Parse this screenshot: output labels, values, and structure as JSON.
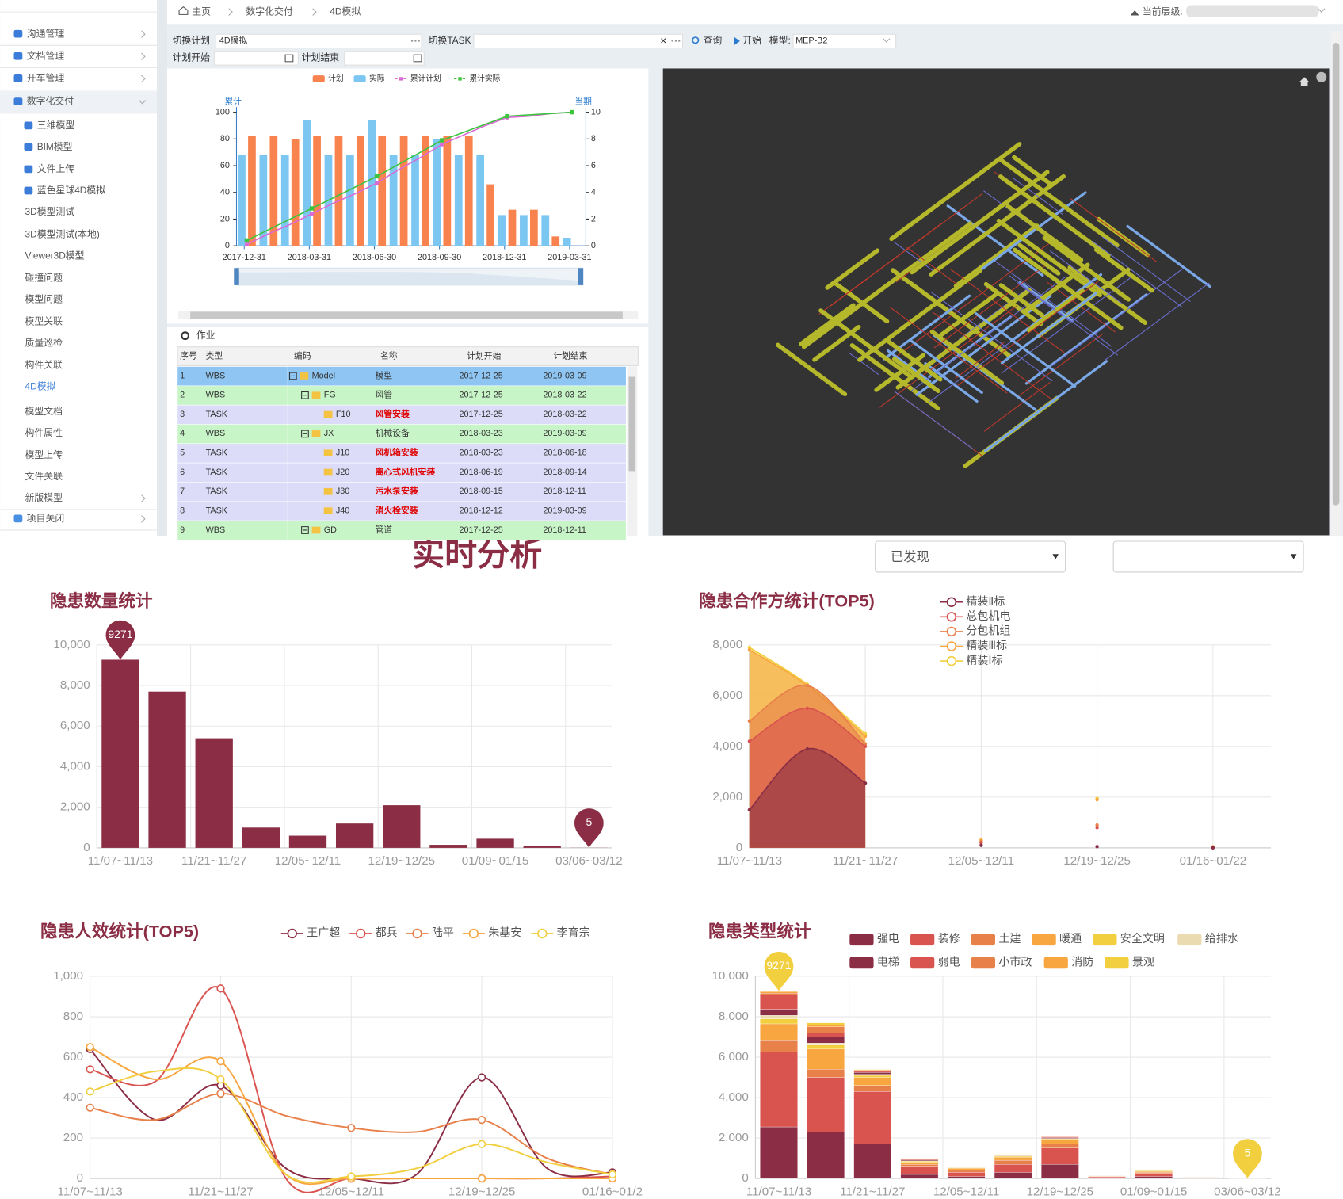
{
  "sidebar": {
    "items": [
      "沟通管理",
      "文档管理",
      "开车管理",
      "数字化交付",
      "三维模型",
      "BIM模型",
      "文件上传",
      "蓝色星球4D模拟",
      "3D模型测试",
      "3D模型测试(本地)",
      "Viewer3D模型",
      "碰撞问题",
      "模型问题",
      "模型关联",
      "质量巡检",
      "构件关联",
      "4D模拟",
      "模型文档",
      "构件属性",
      "模型上传",
      "文件关联",
      "新版模型",
      "项目关闭"
    ]
  },
  "breadcrumb": [
    "主页",
    "数字化交付",
    "4D模拟"
  ],
  "level_label": "当前层级:",
  "toolbar": {
    "plan_label": "切换计划",
    "plan_value": "4D模拟",
    "task_label": "切换TASK",
    "query": "查询",
    "start": "开始",
    "model_label": "模型:",
    "model_value": "MEP-B2",
    "plan_start_label": "计划开始",
    "plan_end_label": "计划结束"
  },
  "table": {
    "title": "作业",
    "headers": [
      "序号",
      "类型",
      "编码",
      "名称",
      "计划开始",
      "计划结束"
    ],
    "rows": [
      [
        "1",
        "WBS",
        "Model",
        "模型",
        "2017-12-25",
        "2019-03-09"
      ],
      [
        "2",
        "WBS",
        "FG",
        "风管",
        "2017-12-25",
        "2018-03-22"
      ],
      [
        "3",
        "TASK",
        "F10",
        "风管安装",
        "2017-12-25",
        "2018-03-22"
      ],
      [
        "4",
        "WBS",
        "JX",
        "机械设备",
        "2018-03-23",
        "2019-03-09"
      ],
      [
        "5",
        "TASK",
        "J10",
        "风机箱安装",
        "2018-03-23",
        "2018-06-18"
      ],
      [
        "6",
        "TASK",
        "J20",
        "离心式风机安装",
        "2018-06-19",
        "2018-09-14"
      ],
      [
        "7",
        "TASK",
        "J30",
        "污水泵安装",
        "2018-09-15",
        "2018-12-11"
      ],
      [
        "8",
        "TASK",
        "J40",
        "消火栓安装",
        "2018-12-12",
        "2019-03-09"
      ],
      [
        "9",
        "WBS",
        "GD",
        "管道",
        "2017-12-25",
        "2018-12-11"
      ]
    ]
  },
  "analysis": {
    "title": "实时分析",
    "filter": "已发现"
  },
  "chart_data": [
    {
      "type": "combo",
      "y_label": "累计",
      "y2_label": "当期",
      "categories": [
        "2017-12-31",
        null,
        null,
        "2018-03-31",
        null,
        null,
        "2018-06-30",
        null,
        null,
        "2018-09-30",
        null,
        null,
        "2018-12-31",
        null,
        null,
        "2019-03-31"
      ],
      "series": [
        {
          "name": "计划",
          "kind": "bar",
          "color": "#f8834f",
          "values": [
            82,
            82,
            80,
            82,
            82,
            82,
            82,
            82,
            82,
            82,
            82,
            46,
            27,
            27,
            7,
            0
          ]
        },
        {
          "name": "实际",
          "kind": "bar",
          "color": "#7cc6f2",
          "values": [
            68,
            68,
            68,
            94,
            68,
            68,
            94,
            68,
            68,
            80,
            68,
            68,
            23,
            23,
            23,
            6
          ]
        },
        {
          "name": "累计计划",
          "kind": "line",
          "axis": "y2",
          "color": "#d96ad6",
          "values": [
            0.1,
            0.9,
            1.6,
            2.4,
            3.2,
            3.9,
            4.7,
            5.7,
            6.6,
            7.6,
            8.3,
            9.0,
            9.6,
            9.7,
            9.9,
            10
          ]
        },
        {
          "name": "累计实际",
          "kind": "line",
          "axis": "y2",
          "color": "#3cc43c",
          "values": [
            0.4,
            1.2,
            2.0,
            2.8,
            3.6,
            4.4,
            5.2,
            6.1,
            7.0,
            7.9,
            8.5,
            9.1,
            9.7,
            9.8,
            9.9,
            10
          ]
        }
      ],
      "ylim": [
        0,
        100
      ],
      "yticks": [
        0,
        20,
        40,
        60,
        80,
        100
      ],
      "y2lim": [
        0,
        10
      ],
      "y2ticks": [
        0,
        2,
        4,
        6,
        8,
        10
      ]
    },
    {
      "type": "bar",
      "title": "隐患数量统计",
      "color": "#8b2e45",
      "categories": [
        "11/07~11/13",
        null,
        "11/21~11/27",
        null,
        "12/05~12/11",
        null,
        "12/19~12/25",
        null,
        "01/09~01/15",
        null,
        "03/06~03/12"
      ],
      "values": [
        9271,
        7700,
        5400,
        1000,
        600,
        1200,
        2100,
        150,
        450,
        80,
        5
      ],
      "ylim": [
        0,
        10000
      ],
      "yticks": [
        0,
        {
          "value": 2000,
          "label": "2,000"
        },
        {
          "value": 4000,
          "label": "4,000"
        },
        {
          "value": 6000,
          "label": "6,000"
        },
        {
          "value": 8000,
          "label": "8,000"
        },
        {
          "value": 10000,
          "label": "10,000"
        }
      ],
      "grid": true
    },
    {
      "type": "area",
      "title": "隐患合作方统计(TOP5)",
      "categories": [
        "11/07~11/13",
        null,
        "11/21~11/27",
        null,
        "12/05~12/11",
        null,
        "12/19~12/25",
        null,
        "01/16~01/22",
        null
      ],
      "series": [
        {
          "name": "精装Ⅱ标",
          "color": "#8b2e45",
          "values": [
            1500,
            3900,
            2550,
            null,
            100,
            null,
            50,
            null,
            0,
            null
          ]
        },
        {
          "name": "总包机电",
          "color": "#d9534f",
          "values": [
            4200,
            5500,
            4000,
            null,
            200,
            null,
            800,
            null,
            20,
            null
          ]
        },
        {
          "name": "分包机组",
          "color": "#e8804a",
          "values": [
            5000,
            6400,
            4100,
            null,
            250,
            null,
            900,
            null,
            30,
            null
          ]
        },
        {
          "name": "精装Ⅲ标",
          "color": "#f7a640",
          "values": [
            7800,
            6400,
            4400,
            null,
            300,
            null,
            1900,
            null,
            40,
            null
          ]
        },
        {
          "name": "精装Ⅰ标",
          "color": "#f1cf3f",
          "values": [
            7900,
            6450,
            4500,
            null,
            320,
            null,
            1950,
            null,
            45,
            null
          ]
        }
      ],
      "ylim": [
        0,
        8000
      ],
      "yticks": [
        0,
        {
          "value": 2000,
          "label": "2,000"
        },
        {
          "value": 4000,
          "label": "4,000"
        },
        {
          "value": 6000,
          "label": "6,000"
        },
        {
          "value": 8000,
          "label": "8,000"
        }
      ],
      "grid": true
    },
    {
      "type": "line",
      "title": "隐患人效统计(TOP5)",
      "smooth": true,
      "categories": [
        "11/07~11/13",
        null,
        "11/21~11/27",
        null,
        "12/05~12/11",
        null,
        "12/19~12/25",
        null,
        "01/16~01/2"
      ],
      "series": [
        {
          "name": "王广超",
          "color": "#8b2e45",
          "values": [
            640,
            290,
            460,
            50,
            0,
            20,
            500,
            50,
            30
          ]
        },
        {
          "name": "都兵",
          "color": "#d9534f",
          "values": [
            540,
            480,
            940,
            0,
            0,
            0,
            0,
            0,
            10
          ]
        },
        {
          "name": "陆平",
          "color": "#e8804a",
          "values": [
            350,
            290,
            420,
            310,
            250,
            230,
            290,
            100,
            20
          ]
        },
        {
          "name": "朱基安",
          "color": "#f7a640",
          "values": [
            650,
            490,
            580,
            20,
            0,
            0,
            0,
            0,
            0
          ]
        },
        {
          "name": "李育宗",
          "color": "#f1cf3f",
          "values": [
            430,
            530,
            490,
            20,
            10,
            50,
            170,
            80,
            20
          ]
        }
      ],
      "ylim": [
        0,
        1000
      ],
      "yticks": [
        0,
        200,
        400,
        600,
        800,
        {
          "value": 1000,
          "label": "1,000"
        }
      ],
      "grid": true
    },
    {
      "type": "stacked_bar",
      "title": "隐患类型统计",
      "annotations": [
        "9271",
        "5"
      ],
      "categories": [
        "11/07~11/13",
        null,
        "11/21~11/27",
        null,
        "12/05~12/11",
        null,
        "12/19~12/25",
        null,
        "01/09~01/15",
        null,
        "03/06~03/12"
      ],
      "series": [
        {
          "name": "强电",
          "color": "#8b2e45",
          "values": [
            2550,
            2300,
            1700,
            200,
            100,
            300,
            700,
            30,
            100,
            20,
            1
          ]
        },
        {
          "name": "装修",
          "color": "#d9534f",
          "values": [
            3700,
            2700,
            2600,
            400,
            200,
            400,
            800,
            50,
            150,
            30,
            2
          ]
        },
        {
          "name": "土建",
          "color": "#e8804a",
          "values": [
            600,
            400,
            300,
            100,
            100,
            200,
            200,
            20,
            50,
            10,
            1
          ]
        },
        {
          "name": "暖通",
          "color": "#f7a640",
          "values": [
            800,
            1000,
            400,
            100,
            100,
            150,
            200,
            20,
            50,
            10,
            1
          ]
        },
        {
          "name": "安全文明",
          "color": "#f1cf3f",
          "values": [
            250,
            200,
            100,
            50,
            30,
            50,
            50,
            10,
            30,
            5,
            0
          ]
        },
        {
          "name": "给排水",
          "color": "#eadbb0",
          "values": [
            171,
            100,
            50,
            20,
            20,
            30,
            30,
            5,
            20,
            2,
            0
          ]
        },
        {
          "name": "电梯",
          "color": "#8b2e45",
          "values": [
            300,
            300,
            100,
            50,
            20,
            20,
            40,
            5,
            20,
            1,
            0
          ]
        },
        {
          "name": "弱电",
          "color": "#d9534f",
          "values": [
            700,
            200,
            50,
            50,
            10,
            20,
            40,
            5,
            10,
            1,
            0
          ]
        },
        {
          "name": "小市政",
          "color": "#e8804a",
          "values": [
            100,
            300,
            50,
            10,
            10,
            10,
            20,
            3,
            10,
            1,
            0
          ]
        },
        {
          "name": "消防",
          "color": "#f7a640",
          "values": [
            80,
            100,
            30,
            10,
            5,
            10,
            10,
            1,
            5,
            0,
            0
          ]
        },
        {
          "name": "景观",
          "color": "#f1cf3f",
          "values": [
            20,
            100,
            20,
            10,
            5,
            10,
            10,
            1,
            5,
            0,
            0
          ]
        }
      ],
      "ylim": [
        0,
        10000
      ],
      "yticks": [
        0,
        {
          "value": 2000,
          "label": "2,000"
        },
        {
          "value": 4000,
          "label": "4,000"
        },
        {
          "value": 6000,
          "label": "6,000"
        },
        {
          "value": 8000,
          "label": "8,000"
        },
        {
          "value": 10000,
          "label": "10,000"
        }
      ],
      "grid": true
    }
  ]
}
